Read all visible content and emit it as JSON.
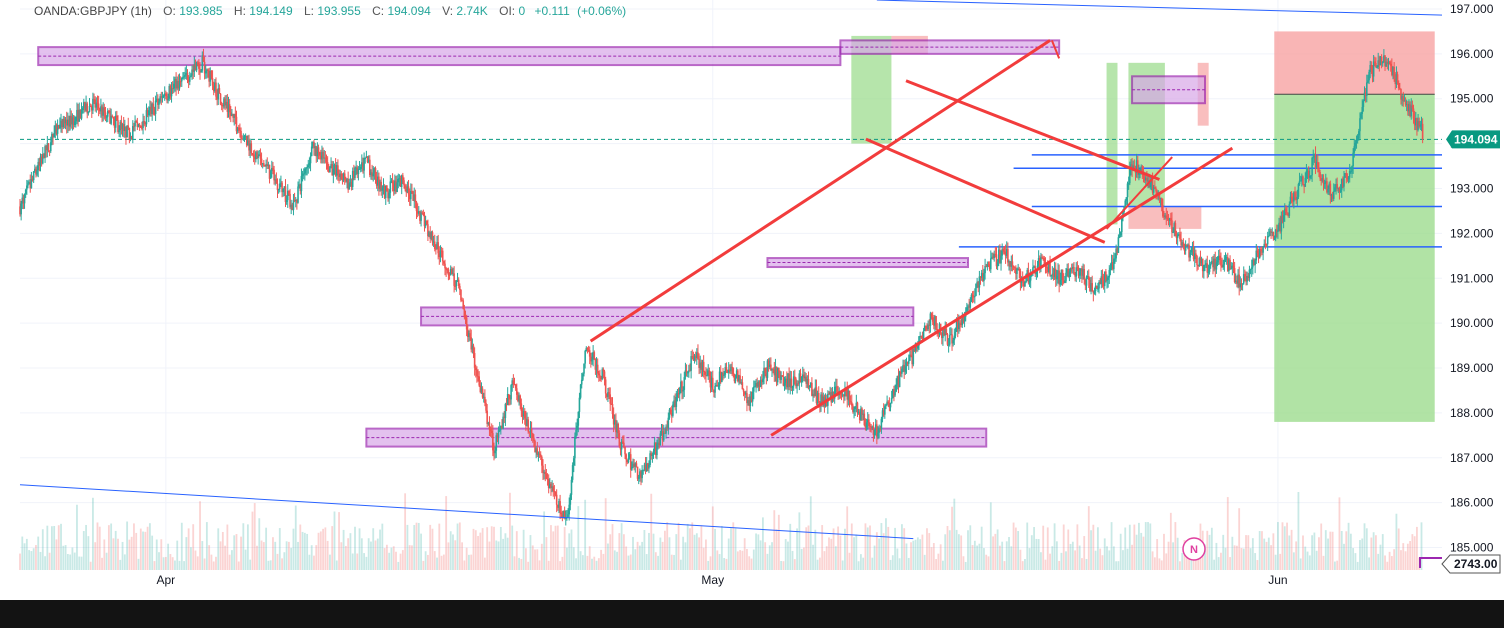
{
  "legend": {
    "symbol": "OANDA:GBPJPY (1h)",
    "o_label": "O:",
    "o": "193.985",
    "h_label": "H:",
    "h": "194.149",
    "l_label": "L:",
    "l": "193.955",
    "c_label": "C:",
    "c": "194.094",
    "v_label": "V:",
    "v": "2.74K",
    "oi_label": "OI:",
    "oi": "0",
    "change": "+0.111",
    "change_pct": "(+0.06%)"
  },
  "price_badge": "194.094",
  "volume_badge": "2743.00",
  "news_icon_label": "N",
  "colors": {
    "up": "#26a69a",
    "down": "#ef5350",
    "zone_fill": "#d8a8e8",
    "zone_stroke": "#9c27b0",
    "trend_red": "#f23c3c",
    "level_blue": "#2962ff",
    "profit": "#9edc8f",
    "loss": "#f7a3a3",
    "badge": "#089981"
  },
  "chart_data": {
    "type": "candlestick",
    "symbol": "OANDA:GBPJPY",
    "ylim": [
      184.5,
      197.2
    ],
    "y_ticks": [
      "197.000",
      "196.000",
      "195.000",
      "194.000",
      "193.000",
      "192.000",
      "191.000",
      "190.000",
      "189.000",
      "188.000",
      "187.000",
      "186.000",
      "185.000"
    ],
    "y_tick_values": [
      197,
      196,
      195,
      194,
      193,
      192,
      191,
      190,
      189,
      188,
      187,
      186,
      185
    ],
    "x_ticks": [
      "Apr",
      "May",
      "Jun"
    ],
    "x_range_days": [
      -8,
      70
    ],
    "x_tick_days": [
      0,
      30,
      61
    ],
    "price_path": [
      [
        -8,
        192.6
      ],
      [
        -6,
        194.3
      ],
      [
        -4,
        194.9
      ],
      [
        -2,
        194.2
      ],
      [
        0,
        195.1
      ],
      [
        2,
        195.8
      ],
      [
        3,
        195.0
      ],
      [
        5,
        193.7
      ],
      [
        6,
        193.2
      ],
      [
        7,
        192.6
      ],
      [
        8,
        193.9
      ],
      [
        10,
        193.1
      ],
      [
        11,
        193.6
      ],
      [
        12,
        192.9
      ],
      [
        13,
        193.2
      ],
      [
        14,
        192.4
      ],
      [
        15,
        191.6
      ],
      [
        16,
        190.8
      ],
      [
        17,
        189.0
      ],
      [
        18,
        187.2
      ],
      [
        19,
        188.6
      ],
      [
        20,
        187.6
      ],
      [
        21,
        186.4
      ],
      [
        22,
        185.6
      ],
      [
        23,
        189.5
      ],
      [
        24,
        188.8
      ],
      [
        25,
        187.2
      ],
      [
        26,
        186.6
      ],
      [
        27,
        187.3
      ],
      [
        28,
        188.3
      ],
      [
        29,
        189.3
      ],
      [
        30,
        188.6
      ],
      [
        31,
        189.0
      ],
      [
        32,
        188.3
      ],
      [
        33,
        189.0
      ],
      [
        34,
        188.7
      ],
      [
        35,
        188.8
      ],
      [
        36,
        188.2
      ],
      [
        37,
        188.6
      ],
      [
        38,
        188.0
      ],
      [
        39,
        187.6
      ],
      [
        40,
        188.6
      ],
      [
        41,
        189.3
      ],
      [
        42,
        190.1
      ],
      [
        43,
        189.6
      ],
      [
        44,
        190.4
      ],
      [
        45,
        191.2
      ],
      [
        46,
        191.6
      ],
      [
        47,
        190.9
      ],
      [
        48,
        191.4
      ],
      [
        49,
        191.0
      ],
      [
        50,
        191.2
      ],
      [
        51,
        190.7
      ],
      [
        52,
        191.3
      ],
      [
        53,
        193.6
      ],
      [
        54,
        193.1
      ],
      [
        55,
        192.3
      ],
      [
        56,
        191.7
      ],
      [
        57,
        191.2
      ],
      [
        58,
        191.4
      ],
      [
        59,
        190.9
      ],
      [
        60,
        191.6
      ],
      [
        61,
        192.1
      ],
      [
        62,
        192.9
      ],
      [
        63,
        193.6
      ],
      [
        64,
        192.8
      ],
      [
        65,
        193.5
      ],
      [
        66,
        195.6
      ],
      [
        67,
        195.9
      ],
      [
        68,
        194.9
      ],
      [
        69,
        194.2
      ]
    ],
    "horizontal_levels": [
      193.75,
      193.45,
      192.6,
      191.7
    ],
    "zones": [
      {
        "from_day": -7,
        "to_day": 37,
        "low": 195.75,
        "high": 196.15
      },
      {
        "from_day": 14,
        "to_day": 41,
        "low": 189.95,
        "high": 190.35
      },
      {
        "from_day": 11,
        "to_day": 45,
        "low": 187.25,
        "high": 187.65
      },
      {
        "from_day": 33,
        "to_day": 44,
        "low": 191.25,
        "high": 191.45
      },
      {
        "from_day": 37,
        "to_day": 49,
        "low": 196.0,
        "high": 196.3
      },
      {
        "from_day": 53,
        "to_day": 57,
        "low": 194.9,
        "high": 195.5
      }
    ]
  }
}
